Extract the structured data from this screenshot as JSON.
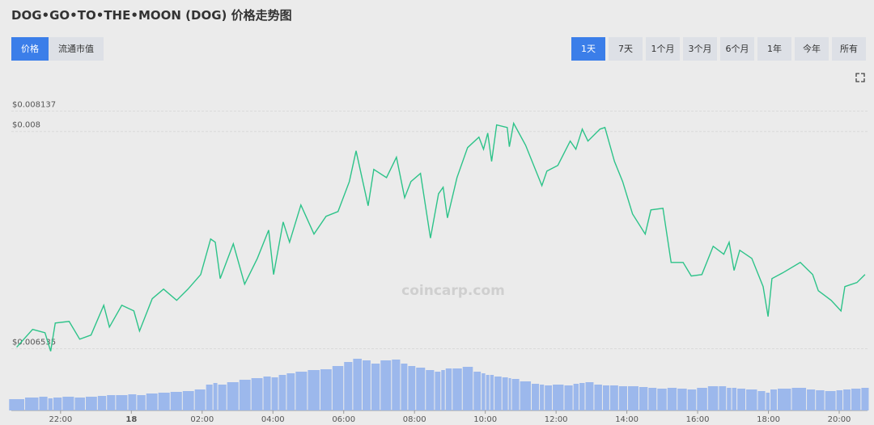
{
  "header": {
    "title": "DOG•GO•TO•THE•MOON (DOG) 价格走势图"
  },
  "tabs": {
    "items": [
      "价格",
      "流通市值"
    ],
    "active": 0
  },
  "ranges": {
    "items": [
      "1天",
      "7天",
      "1个月",
      "3个月",
      "6个月",
      "1年",
      "今年",
      "所有"
    ],
    "active": 0
  },
  "chart_data": {
    "type": "line",
    "watermark": "coincarp.com",
    "x": [
      -3.24,
      -2.79,
      -2.44,
      -2.28,
      -2.15,
      -1.76,
      -1.46,
      -1.14,
      -0.78,
      -0.62,
      -0.27,
      0.07,
      0.23,
      0.59,
      0.91,
      1.28,
      1.6,
      1.96,
      2.24,
      2.37,
      2.51,
      2.88,
      3.2,
      3.56,
      3.88,
      4.02,
      4.29,
      4.47,
      4.79,
      5.16,
      5.5,
      5.84,
      6.16,
      6.35,
      6.69,
      6.85,
      7.21,
      7.49,
      7.72,
      7.9,
      8.17,
      8.45,
      8.68,
      8.81,
      8.93,
      9.2,
      9.5,
      9.82,
      9.95,
      10.07,
      10.18,
      10.32,
      10.62,
      10.68,
      10.8,
      11.14,
      11.46,
      11.6,
      11.74,
      12.05,
      12.4,
      12.56,
      12.74,
      12.9,
      13.24,
      13.38,
      13.65,
      13.88,
      14.16,
      14.52,
      14.68,
      15.02,
      15.25,
      15.59,
      15.82,
      16.12,
      16.44,
      16.74,
      16.89,
      17.03,
      17.19,
      17.53,
      17.85,
      17.99,
      18.1,
      18.4,
      18.9,
      19.25,
      19.41,
      19.77,
      20.05,
      20.16,
      20.5,
      20.73
    ],
    "xlim": [
      -3.3,
      20.8
    ],
    "xticks": [
      {
        "value": -2,
        "label": "22:00"
      },
      {
        "value": 0,
        "label": "18"
      },
      {
        "value": 2,
        "label": "02:00"
      },
      {
        "value": 4,
        "label": "04:00"
      },
      {
        "value": 6,
        "label": "06:00"
      },
      {
        "value": 8,
        "label": "08:00"
      },
      {
        "value": 10,
        "label": "10:00"
      },
      {
        "value": 12,
        "label": "12:00"
      },
      {
        "value": 14,
        "label": "14:00"
      },
      {
        "value": 16,
        "label": "16:00"
      },
      {
        "value": 18,
        "label": "18:00"
      },
      {
        "value": 20,
        "label": "20:00"
      }
    ],
    "ylim": [
      0.0065,
      0.0082
    ],
    "yticks": [
      {
        "value": 0.006535,
        "label": "$0.006535"
      },
      {
        "value": 0.008,
        "label": "$0.008"
      },
      {
        "value": 0.008137,
        "label": "$0.008137"
      }
    ],
    "y2lim": [
      0,
      100
    ],
    "grid": true,
    "series": [
      {
        "color": "#2dc389",
        "values": [
          0.006545,
          0.006665,
          0.006643,
          0.006518,
          0.006708,
          0.006719,
          0.006599,
          0.006627,
          0.006828,
          0.006681,
          0.006828,
          0.00679,
          0.006654,
          0.006872,
          0.006937,
          0.006861,
          0.006937,
          0.007035,
          0.007275,
          0.007253,
          0.007008,
          0.007242,
          0.00697,
          0.007144,
          0.007335,
          0.007035,
          0.00739,
          0.007253,
          0.007504,
          0.007308,
          0.007428,
          0.00746,
          0.007662,
          0.007869,
          0.007499,
          0.007744,
          0.007689,
          0.007826,
          0.007553,
          0.007662,
          0.007717,
          0.007281,
          0.00758,
          0.007624,
          0.007417,
          0.007689,
          0.007891,
          0.007962,
          0.00788,
          0.007989,
          0.007798,
          0.008044,
          0.008027,
          0.007897,
          0.008055,
          0.007907,
          0.007717,
          0.007635,
          0.007733,
          0.007771,
          0.007935,
          0.00788,
          0.008016,
          0.007935,
          0.008016,
          0.008027,
          0.007798,
          0.007662,
          0.007444,
          0.007308,
          0.007471,
          0.007482,
          0.007117,
          0.007117,
          0.007025,
          0.007035,
          0.007226,
          0.007172,
          0.007253,
          0.007063,
          0.007199,
          0.007144,
          0.006954,
          0.006752,
          0.007008,
          0.007046,
          0.007117,
          0.007035,
          0.006926,
          0.006861,
          0.00679,
          0.006954,
          0.006981,
          0.007035
        ]
      },
      {
        "type": "bar",
        "axis": "y2",
        "color": "#9cb8ec",
        "values": [
          14,
          16,
          17,
          15,
          16,
          17,
          16,
          17,
          18,
          19,
          19,
          20,
          19,
          21,
          22,
          23,
          24,
          26,
          32,
          34,
          32,
          35,
          38,
          40,
          42,
          41,
          44,
          46,
          48,
          50,
          51,
          55,
          60,
          64,
          62,
          58,
          62,
          63,
          58,
          55,
          53,
          50,
          48,
          50,
          52,
          52,
          54,
          48,
          46,
          44,
          44,
          42,
          41,
          40,
          39,
          36,
          33,
          32,
          31,
          32,
          31,
          33,
          34,
          35,
          32,
          31,
          31,
          30,
          30,
          29,
          28,
          27,
          28,
          27,
          26,
          28,
          30,
          30,
          28,
          28,
          27,
          26,
          24,
          22,
          26,
          27,
          28,
          26,
          25,
          24,
          25,
          26,
          27,
          28
        ]
      }
    ]
  }
}
